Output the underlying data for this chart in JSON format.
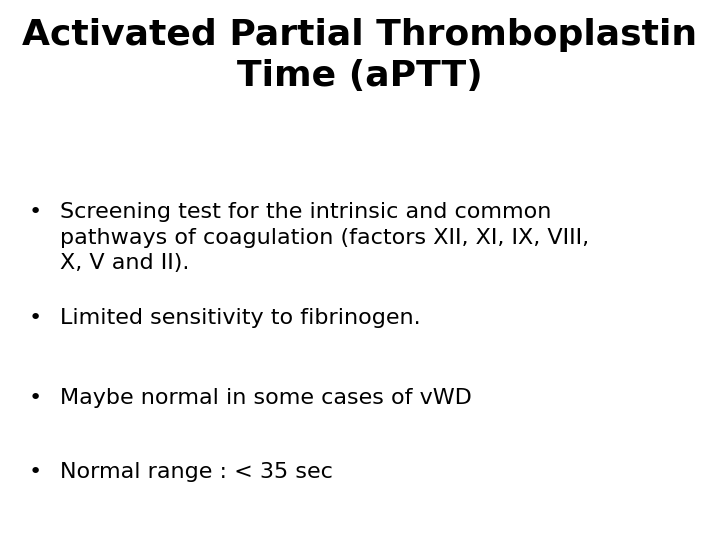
{
  "title_line1": "Activated Partial Thromboplastin",
  "title_line2": "Time (aPTT)",
  "bullet_points": [
    "Screening test for the intrinsic and common\npathways of coagulation (factors XII, XI, IX, VIII,\nX, V and II).",
    "Limited sensitivity to fibrinogen.",
    "Maybe normal in some cases of vWD",
    "Normal range : < 35 sec"
  ],
  "background_color": "#ffffff",
  "title_color": "#000000",
  "text_color": "#000000",
  "bullet_color": "#000000",
  "title_fontsize": 26,
  "body_fontsize": 16,
  "title_font_weight": "bold",
  "title_font_family": "DejaVu Sans",
  "body_font_family": "DejaVu Sans"
}
